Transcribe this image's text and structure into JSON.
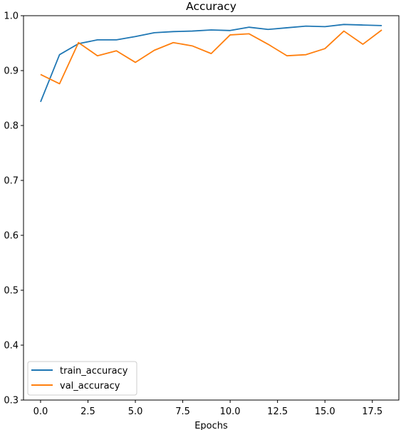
{
  "chart_data": {
    "type": "line",
    "title": "Accuracy",
    "xlabel": "Epochs",
    "ylabel": "",
    "xlim": [
      -0.9,
      18.9
    ],
    "ylim": [
      0.3,
      1.0
    ],
    "xticks": [
      0.0,
      2.5,
      5.0,
      7.5,
      10.0,
      12.5,
      15.0,
      17.5
    ],
    "xtick_labels": [
      "0.0",
      "2.5",
      "5.0",
      "7.5",
      "10.0",
      "12.5",
      "15.0",
      "17.5"
    ],
    "yticks": [
      0.3,
      0.4,
      0.5,
      0.6,
      0.7,
      0.8,
      0.9,
      1.0
    ],
    "ytick_labels": [
      "0.3",
      "0.4",
      "0.5",
      "0.6",
      "0.7",
      "0.8",
      "0.9",
      "1.0"
    ],
    "grid": false,
    "legend_position": "lower-left",
    "x": [
      0,
      1,
      2,
      3,
      4,
      5,
      6,
      7,
      8,
      9,
      10,
      11,
      12,
      13,
      14,
      15,
      16,
      17,
      18
    ],
    "series": [
      {
        "name": "train_accuracy",
        "color": "#1f77b4",
        "values": [
          0.843,
          0.929,
          0.949,
          0.956,
          0.956,
          0.962,
          0.969,
          0.971,
          0.972,
          0.974,
          0.973,
          0.979,
          0.975,
          0.978,
          0.981,
          0.98,
          0.984,
          0.983,
          0.982
        ]
      },
      {
        "name": "val_accuracy",
        "color": "#ff7f0e",
        "values": [
          0.893,
          0.876,
          0.951,
          0.927,
          0.936,
          0.915,
          0.937,
          0.951,
          0.945,
          0.931,
          0.965,
          0.967,
          0.948,
          0.927,
          0.929,
          0.94,
          0.972,
          0.948,
          0.974
        ]
      }
    ]
  }
}
